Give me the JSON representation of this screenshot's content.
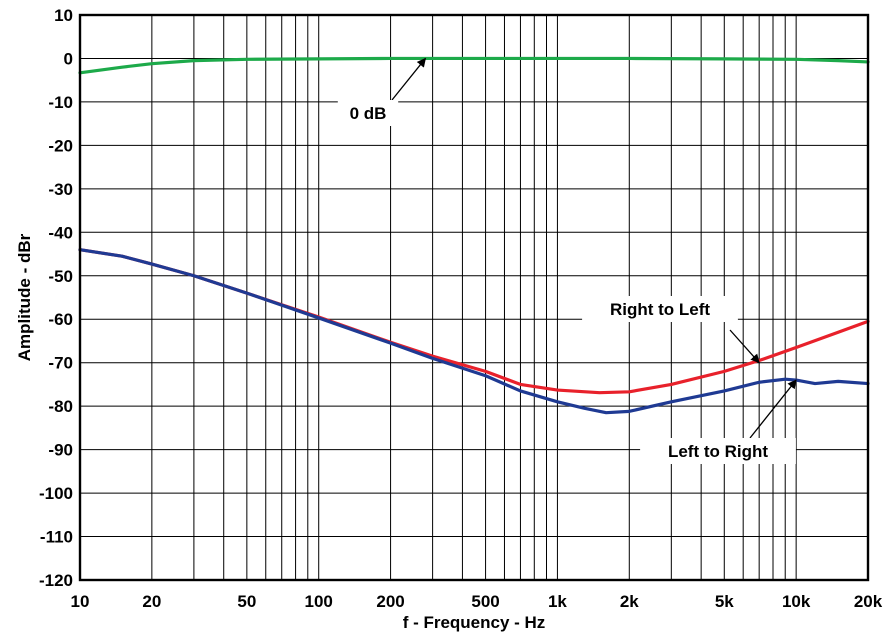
{
  "chart_data": {
    "type": "line",
    "title": "",
    "xlabel": "f - Frequency - Hz",
    "ylabel": "Amplitude - dBr",
    "xscale": "log",
    "xlim": [
      10,
      20000
    ],
    "ylim": [
      -120,
      10
    ],
    "grid": true,
    "x_ticks": [
      10,
      20,
      50,
      100,
      200,
      500,
      1000,
      2000,
      5000,
      10000,
      20000
    ],
    "x_tick_labels": [
      "10",
      "20",
      "50",
      "100",
      "200",
      "500",
      "1k",
      "2k",
      "5k",
      "10k",
      "20k"
    ],
    "y_ticks": [
      10,
      0,
      -10,
      -20,
      -30,
      -40,
      -50,
      -60,
      -70,
      -80,
      -90,
      -100,
      -110,
      -120
    ],
    "y_tick_labels": [
      "10",
      "0",
      "-10",
      "-20",
      "-30",
      "-40",
      "-50",
      "-60",
      "-70",
      "-80",
      "-90",
      "-100",
      "-110",
      "-120"
    ],
    "series": [
      {
        "color": "#1daa4a",
        "points": [
          [
            10,
            -3.3
          ],
          [
            15,
            -2
          ],
          [
            20,
            -1.2
          ],
          [
            30,
            -0.5
          ],
          [
            50,
            -0.2
          ],
          [
            100,
            -0.1
          ],
          [
            200,
            0
          ],
          [
            500,
            0
          ],
          [
            1000,
            0
          ],
          [
            2000,
            0
          ],
          [
            5000,
            -0.1
          ],
          [
            10000,
            -0.2
          ],
          [
            15000,
            -0.5
          ],
          [
            20000,
            -0.8
          ]
        ]
      },
      {
        "color": "#e8212b",
        "points": [
          [
            10,
            -44
          ],
          [
            15,
            -45.5
          ],
          [
            20,
            -47.3
          ],
          [
            30,
            -50
          ],
          [
            50,
            -54
          ],
          [
            100,
            -59.5
          ],
          [
            200,
            -65.3
          ],
          [
            300,
            -68.5
          ],
          [
            500,
            -72
          ],
          [
            700,
            -75
          ],
          [
            1000,
            -76.3
          ],
          [
            1500,
            -76.9
          ],
          [
            2000,
            -76.7
          ],
          [
            3000,
            -75
          ],
          [
            5000,
            -72
          ],
          [
            7000,
            -69.5
          ],
          [
            10000,
            -66.5
          ],
          [
            15000,
            -63
          ],
          [
            20000,
            -60.5
          ]
        ]
      },
      {
        "color": "#1f3a93",
        "points": [
          [
            10,
            -44
          ],
          [
            15,
            -45.5
          ],
          [
            20,
            -47.3
          ],
          [
            30,
            -50
          ],
          [
            50,
            -54
          ],
          [
            100,
            -59.7
          ],
          [
            200,
            -65.5
          ],
          [
            300,
            -69
          ],
          [
            500,
            -73
          ],
          [
            700,
            -76.5
          ],
          [
            1000,
            -79
          ],
          [
            1300,
            -80.5
          ],
          [
            1600,
            -81.5
          ],
          [
            2000,
            -81.2
          ],
          [
            3000,
            -79
          ],
          [
            5000,
            -76.5
          ],
          [
            7000,
            -74.5
          ],
          [
            9000,
            -73.8
          ],
          [
            10000,
            -74
          ],
          [
            12000,
            -74.8
          ],
          [
            15000,
            -74.3
          ],
          [
            20000,
            -74.8
          ]
        ]
      }
    ],
    "annotations": [
      {
        "text": "0 dB",
        "target": [
          280,
          0
        ]
      },
      {
        "text": "Right to Left",
        "target": [
          7000,
          -70
        ]
      },
      {
        "text": "Left to Right",
        "target": [
          10000,
          -74
        ]
      }
    ]
  }
}
